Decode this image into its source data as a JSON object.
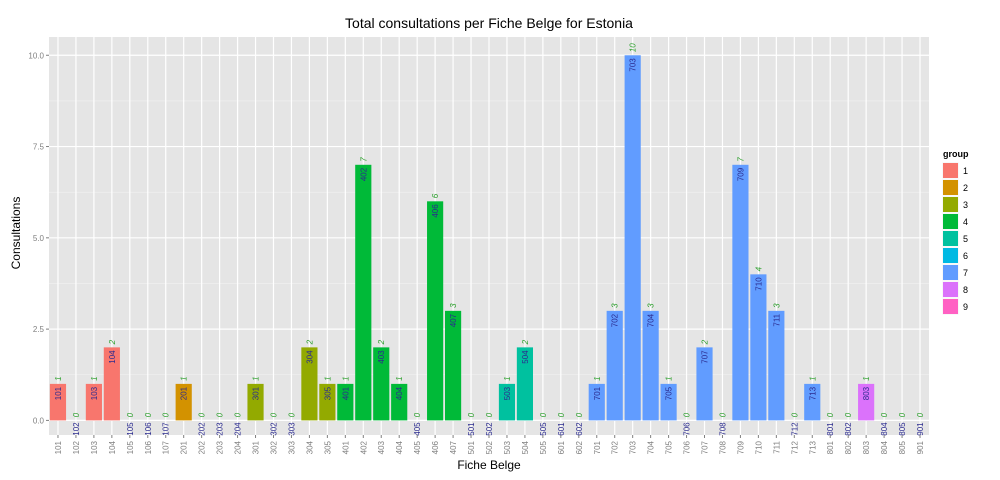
{
  "chart_data": {
    "type": "bar",
    "title": "Total consultations per Fiche Belge for Estonia",
    "xlabel": "Fiche Belge",
    "ylabel": "Consultations",
    "ylim": [
      -0.4,
      10.5
    ],
    "yticks": [
      "0.0",
      "2.5",
      "5.0",
      "7.5",
      "10.0"
    ],
    "ytick_values": [
      0,
      2.5,
      5,
      7.5,
      10
    ],
    "grid": true,
    "legend_position": "right",
    "legend_title": "group",
    "groups": [
      {
        "label": "1",
        "color": "#F8766D"
      },
      {
        "label": "2",
        "color": "#D39200"
      },
      {
        "label": "3",
        "color": "#93AA00"
      },
      {
        "label": "4",
        "color": "#00BA38"
      },
      {
        "label": "5",
        "color": "#00C19F"
      },
      {
        "label": "6",
        "color": "#00B9E3"
      },
      {
        "label": "7",
        "color": "#619CFF"
      },
      {
        "label": "8",
        "color": "#DB72FB"
      },
      {
        "label": "9",
        "color": "#FF61C3"
      }
    ],
    "categories": [
      "101",
      "102",
      "103",
      "104",
      "105",
      "106",
      "107",
      "201",
      "202",
      "203",
      "204",
      "301",
      "302",
      "303",
      "304",
      "305",
      "401",
      "402",
      "403",
      "404",
      "405",
      "406",
      "407",
      "501",
      "502",
      "503",
      "504",
      "505",
      "601",
      "602",
      "701",
      "702",
      "703",
      "704",
      "705",
      "706",
      "707",
      "708",
      "709",
      "710",
      "711",
      "712",
      "713",
      "801",
      "802",
      "803",
      "804",
      "805",
      "901"
    ],
    "values": [
      1,
      0,
      1,
      2,
      0,
      0,
      0,
      1,
      0,
      0,
      0,
      1,
      0,
      0,
      2,
      1,
      1,
      7,
      2,
      1,
      0,
      6,
      3,
      0,
      0,
      1,
      2,
      0,
      0,
      0,
      1,
      3,
      10,
      3,
      1,
      0,
      2,
      0,
      7,
      4,
      3,
      0,
      1,
      0,
      0,
      1,
      0,
      0,
      0
    ],
    "category_groups": [
      1,
      1,
      1,
      1,
      1,
      1,
      1,
      2,
      2,
      2,
      2,
      3,
      3,
      3,
      3,
      3,
      4,
      4,
      4,
      4,
      4,
      4,
      4,
      5,
      5,
      5,
      5,
      5,
      6,
      6,
      7,
      7,
      7,
      7,
      7,
      7,
      7,
      7,
      7,
      7,
      7,
      7,
      7,
      8,
      8,
      8,
      8,
      8,
      9
    ]
  }
}
